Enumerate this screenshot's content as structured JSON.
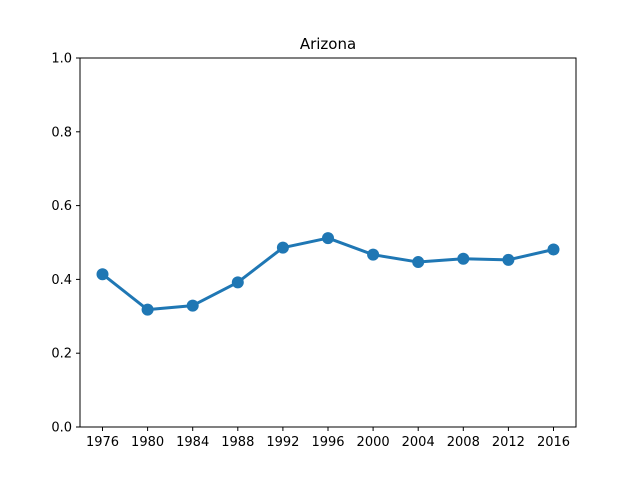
{
  "chart_data": {
    "type": "line",
    "title": "Arizona",
    "xlabel": "",
    "ylabel": "",
    "categories": [
      "1976",
      "1980",
      "1984",
      "1988",
      "1992",
      "1996",
      "2000",
      "2004",
      "2008",
      "2012",
      "2016"
    ],
    "series": [
      {
        "values": [
          0.414,
          0.318,
          0.329,
          0.392,
          0.486,
          0.512,
          0.467,
          0.447,
          0.456,
          0.453,
          0.481
        ],
        "color": "#1f77b4"
      }
    ],
    "ylim": [
      0.0,
      1.0
    ],
    "yticks": [
      "0.0",
      "0.2",
      "0.4",
      "0.6",
      "0.8",
      "1.0"
    ],
    "grid": false,
    "legend": "none"
  }
}
